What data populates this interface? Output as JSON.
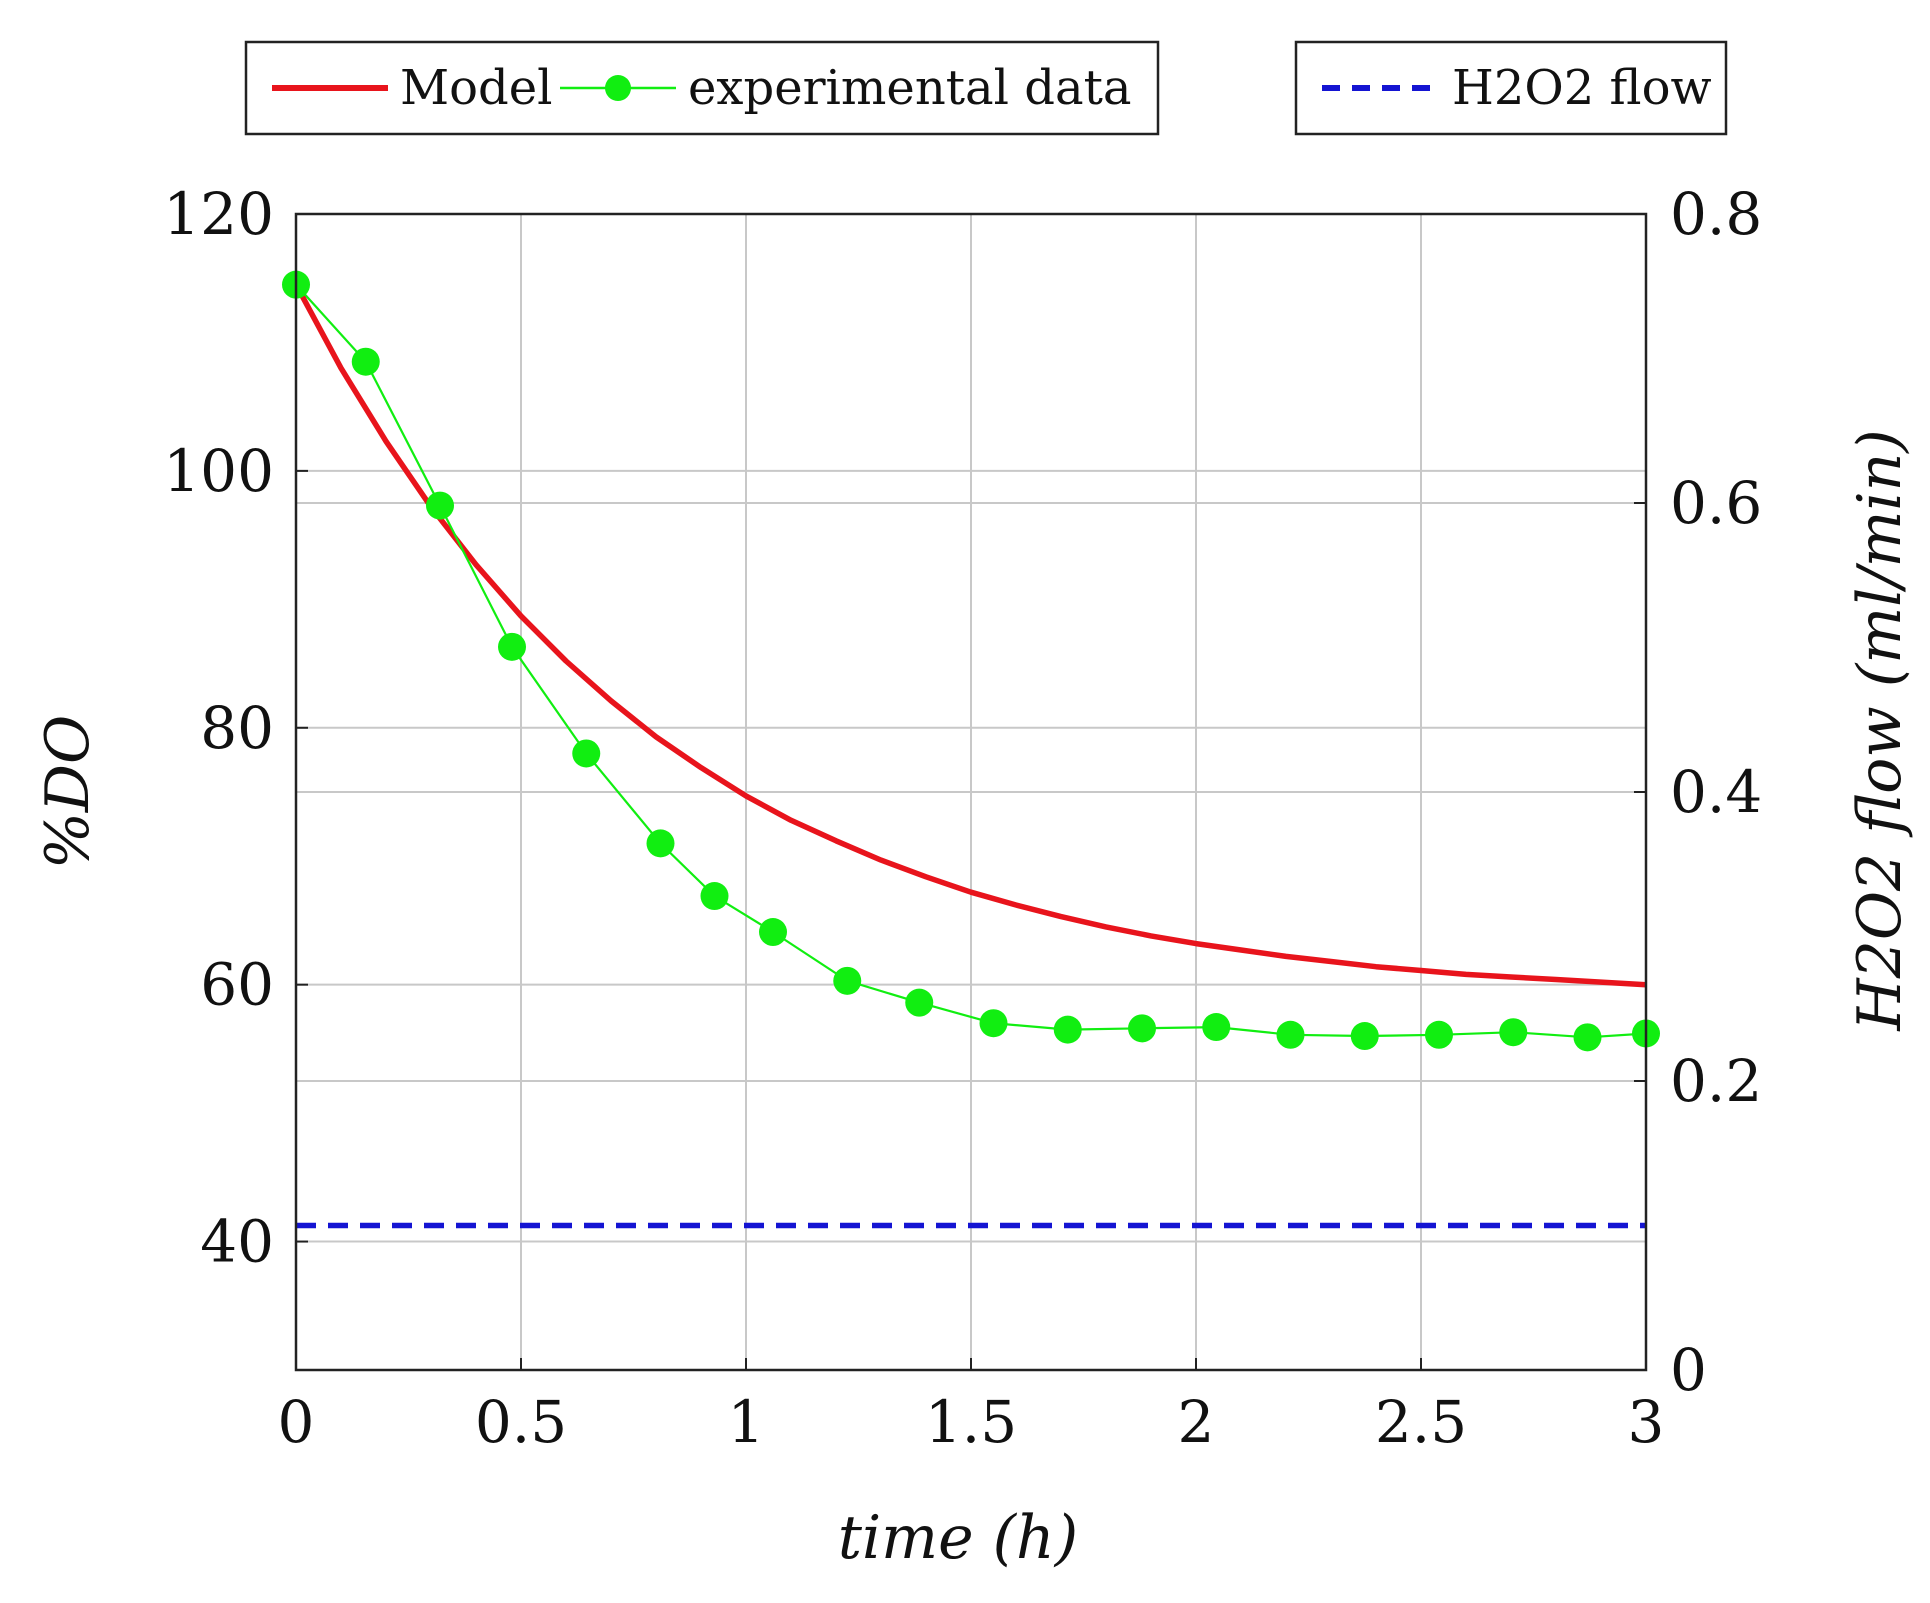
{
  "chart_data": {
    "type": "line",
    "xlabel": "time (h)",
    "ylabel_left": "%DO",
    "ylabel_right": "H2O2 flow (ml/min)",
    "xlim": [
      0,
      3
    ],
    "ylim_left": [
      30,
      120
    ],
    "ylim_right": [
      0,
      0.8
    ],
    "grid": true,
    "x_ticks": [
      0,
      0.5,
      1,
      1.5,
      2,
      2.5,
      3
    ],
    "x_tick_labels": [
      "0",
      "0.5",
      "1",
      "1.5",
      "2",
      "2.5",
      "3"
    ],
    "y_left_ticks": [
      40,
      60,
      80,
      100,
      120
    ],
    "y_left_tick_labels": [
      "40",
      "60",
      "80",
      "100",
      "120"
    ],
    "y_right_ticks": [
      0,
      0.2,
      0.4,
      0.6,
      0.8
    ],
    "y_right_tick_labels": [
      "0",
      "0.2",
      "0.4",
      "0.6",
      "0.8"
    ],
    "legends": {
      "left_box": [
        "Model",
        "experimental data"
      ],
      "right_box": [
        "H2O2 flow"
      ],
      "placement": "top"
    },
    "series": [
      {
        "name": "Model",
        "axis": "left",
        "color": "#e8141c",
        "style": "solid",
        "x": [
          0,
          0.1,
          0.2,
          0.3,
          0.4,
          0.5,
          0.6,
          0.7,
          0.8,
          0.9,
          1.0,
          1.1,
          1.2,
          1.3,
          1.4,
          1.5,
          1.6,
          1.7,
          1.8,
          1.9,
          2.0,
          2.1,
          2.2,
          2.3,
          2.4,
          2.5,
          2.6,
          2.7,
          2.8,
          2.9,
          3.0
        ],
        "y": [
          114.5,
          108.0,
          102.3,
          97.2,
          92.7,
          88.7,
          85.2,
          82.1,
          79.3,
          76.9,
          74.7,
          72.8,
          71.2,
          69.7,
          68.4,
          67.2,
          66.2,
          65.3,
          64.5,
          63.8,
          63.2,
          62.7,
          62.2,
          61.8,
          61.4,
          61.1,
          60.8,
          60.6,
          60.4,
          60.2,
          60.0
        ]
      },
      {
        "name": "experimental data",
        "axis": "left",
        "color": "#11ee11",
        "style": "line-markers",
        "x": [
          0,
          0.155,
          0.32,
          0.48,
          0.645,
          0.81,
          0.93,
          1.06,
          1.225,
          1.385,
          1.55,
          1.715,
          1.88,
          2.045,
          2.21,
          2.375,
          2.54,
          2.705,
          2.87,
          3.0
        ],
        "y": [
          114.5,
          108.5,
          97.3,
          86.3,
          78.0,
          71.0,
          66.9,
          64.1,
          60.3,
          58.6,
          57.0,
          56.5,
          56.6,
          56.7,
          56.1,
          56.0,
          56.1,
          56.3,
          55.9,
          56.2
        ]
      },
      {
        "name": "H2O2 flow",
        "axis": "right",
        "color": "#1414d2",
        "style": "dashed",
        "x": [
          0,
          3
        ],
        "y": [
          0.1,
          0.1
        ]
      }
    ]
  }
}
